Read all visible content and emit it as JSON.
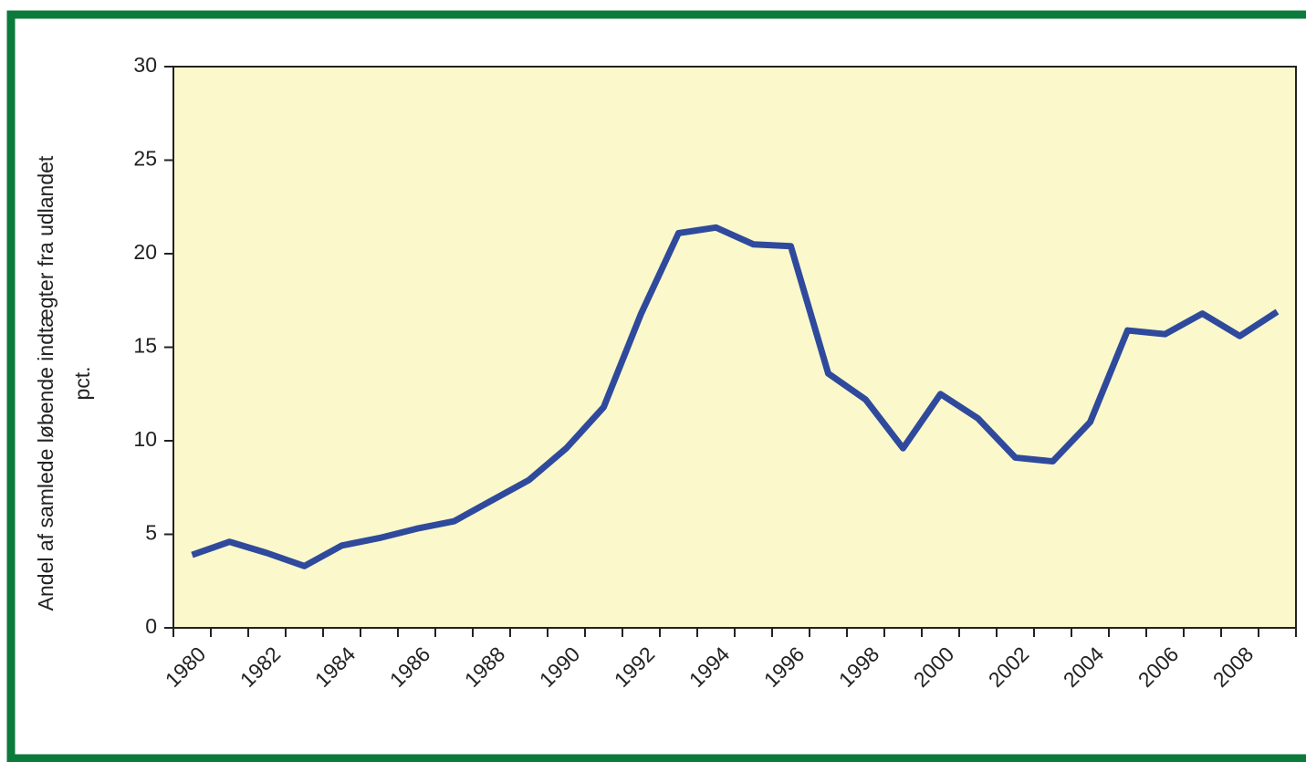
{
  "chart_data": {
    "type": "line",
    "ylabel": [
      "Andel af samlede løbende indtægter fra udlandet",
      "pct."
    ],
    "categories": [
      "1980",
      null,
      "1982",
      null,
      "1984",
      null,
      "1986",
      null,
      "1988",
      null,
      "1990",
      null,
      "1992",
      null,
      "1994",
      null,
      "1996",
      null,
      "1998",
      null,
      "2000",
      null,
      "2002",
      null,
      "2004",
      null,
      "2006",
      null,
      "2008",
      null
    ],
    "series": [
      {
        "name": null,
        "color": "#2f4a9c",
        "values": [
          3.9,
          4.6,
          4.0,
          3.3,
          4.4,
          4.8,
          5.3,
          5.7,
          6.8,
          7.9,
          9.6,
          11.8,
          16.8,
          21.1,
          21.4,
          20.5,
          20.4,
          13.6,
          12.2,
          9.6,
          12.5,
          11.2,
          9.1,
          8.9,
          11.0,
          15.9,
          15.7,
          16.8,
          15.6,
          16.9
        ]
      }
    ],
    "ylim": [
      0,
      30
    ],
    "yticks": [
      0,
      5,
      10,
      15,
      20,
      25,
      30
    ],
    "grid": false,
    "plot_background": "#fbf8cc",
    "frame_color": "#0c7a3b"
  }
}
